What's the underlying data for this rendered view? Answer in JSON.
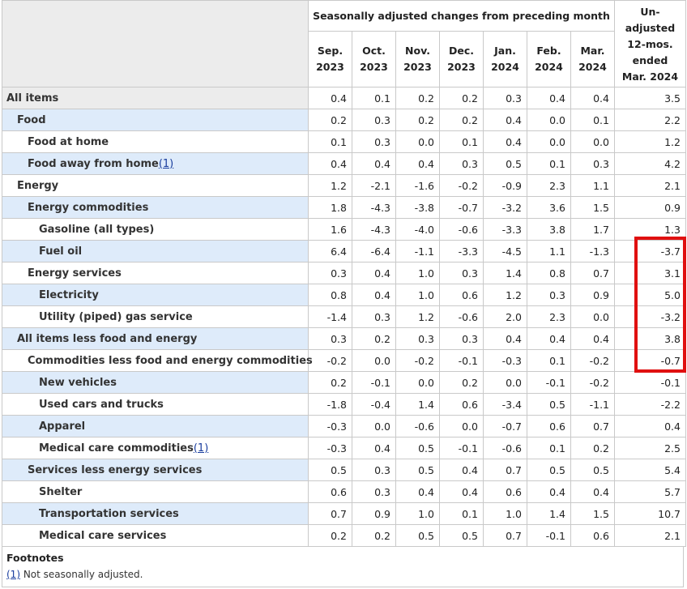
{
  "header": {
    "group_label": "Seasonally adjusted changes from preceding month",
    "unadjusted_label": [
      "Un-",
      "adjusted",
      "12-mos.",
      "ended",
      "Mar. 2024"
    ],
    "months": [
      [
        "Sep.",
        "2023"
      ],
      [
        "Oct.",
        "2023"
      ],
      [
        "Nov.",
        "2023"
      ],
      [
        "Dec.",
        "2023"
      ],
      [
        "Jan.",
        "2024"
      ],
      [
        "Feb.",
        "2024"
      ],
      [
        "Mar.",
        "2024"
      ]
    ]
  },
  "rows": [
    {
      "label": "All items",
      "level": 0,
      "shade": false,
      "values": [
        "0.4",
        "0.1",
        "0.2",
        "0.2",
        "0.3",
        "0.4",
        "0.4",
        "3.5"
      ]
    },
    {
      "label": "Food",
      "level": 1,
      "shade": true,
      "values": [
        "0.2",
        "0.3",
        "0.2",
        "0.2",
        "0.4",
        "0.0",
        "0.1",
        "2.2"
      ]
    },
    {
      "label": "Food at home",
      "level": 2,
      "shade": false,
      "values": [
        "0.1",
        "0.3",
        "0.0",
        "0.1",
        "0.4",
        "0.0",
        "0.0",
        "1.2"
      ]
    },
    {
      "label": "Food away from home",
      "footnote": "(1)",
      "level": 2,
      "shade": true,
      "values": [
        "0.4",
        "0.4",
        "0.4",
        "0.3",
        "0.5",
        "0.1",
        "0.3",
        "4.2"
      ]
    },
    {
      "label": "Energy",
      "level": 1,
      "shade": false,
      "values": [
        "1.2",
        "-2.1",
        "-1.6",
        "-0.2",
        "-0.9",
        "2.3",
        "1.1",
        "2.1"
      ]
    },
    {
      "label": "Energy commodities",
      "level": 2,
      "shade": true,
      "values": [
        "1.8",
        "-4.3",
        "-3.8",
        "-0.7",
        "-3.2",
        "3.6",
        "1.5",
        "0.9"
      ]
    },
    {
      "label": "Gasoline (all types)",
      "level": 3,
      "shade": false,
      "values": [
        "1.6",
        "-4.3",
        "-4.0",
        "-0.6",
        "-3.3",
        "3.8",
        "1.7",
        "1.3"
      ]
    },
    {
      "label": "Fuel oil",
      "level": 3,
      "shade": true,
      "values": [
        "6.4",
        "-6.4",
        "-1.1",
        "-3.3",
        "-4.5",
        "1.1",
        "-1.3",
        "-3.7"
      ]
    },
    {
      "label": "Energy services",
      "level": 2,
      "shade": false,
      "values": [
        "0.3",
        "0.4",
        "1.0",
        "0.3",
        "1.4",
        "0.8",
        "0.7",
        "3.1"
      ]
    },
    {
      "label": "Electricity",
      "level": 3,
      "shade": true,
      "values": [
        "0.8",
        "0.4",
        "1.0",
        "0.6",
        "1.2",
        "0.3",
        "0.9",
        "5.0"
      ]
    },
    {
      "label": "Utility (piped) gas service",
      "level": 3,
      "shade": false,
      "values": [
        "-1.4",
        "0.3",
        "1.2",
        "-0.6",
        "2.0",
        "2.3",
        "0.0",
        "-3.2"
      ]
    },
    {
      "label": "All items less food and energy",
      "level": 1,
      "shade": true,
      "values": [
        "0.3",
        "0.2",
        "0.3",
        "0.3",
        "0.4",
        "0.4",
        "0.4",
        "3.8"
      ]
    },
    {
      "label": "Commodities less food and energy commodities",
      "level": 2,
      "shade": false,
      "values": [
        "-0.2",
        "0.0",
        "-0.2",
        "-0.1",
        "-0.3",
        "0.1",
        "-0.2",
        "-0.7"
      ]
    },
    {
      "label": "New vehicles",
      "level": 3,
      "shade": true,
      "values": [
        "0.2",
        "-0.1",
        "0.0",
        "0.2",
        "0.0",
        "-0.1",
        "-0.2",
        "-0.1"
      ]
    },
    {
      "label": "Used cars and trucks",
      "level": 3,
      "shade": false,
      "values": [
        "-1.8",
        "-0.4",
        "1.4",
        "0.6",
        "-3.4",
        "0.5",
        "-1.1",
        "-2.2"
      ]
    },
    {
      "label": "Apparel",
      "level": 3,
      "shade": true,
      "values": [
        "-0.3",
        "0.0",
        "-0.6",
        "0.0",
        "-0.7",
        "0.6",
        "0.7",
        "0.4"
      ]
    },
    {
      "label": "Medical care commodities",
      "footnote": "(1)",
      "level": 3,
      "shade": false,
      "values": [
        "-0.3",
        "0.4",
        "0.5",
        "-0.1",
        "-0.6",
        "0.1",
        "0.2",
        "2.5"
      ]
    },
    {
      "label": "Services less energy services",
      "level": 2,
      "shade": true,
      "values": [
        "0.5",
        "0.3",
        "0.5",
        "0.4",
        "0.7",
        "0.5",
        "0.5",
        "5.4"
      ]
    },
    {
      "label": "Shelter",
      "level": 3,
      "shade": false,
      "values": [
        "0.6",
        "0.3",
        "0.4",
        "0.4",
        "0.6",
        "0.4",
        "0.4",
        "5.7"
      ]
    },
    {
      "label": "Transportation services",
      "level": 3,
      "shade": true,
      "values": [
        "0.7",
        "0.9",
        "1.0",
        "0.1",
        "1.0",
        "1.4",
        "1.5",
        "10.7"
      ]
    },
    {
      "label": "Medical care services",
      "level": 3,
      "shade": false,
      "values": [
        "0.2",
        "0.2",
        "0.5",
        "0.5",
        "0.7",
        "-0.1",
        "0.6",
        "2.1"
      ]
    }
  ],
  "footnotes": {
    "title": "Footnotes",
    "items": [
      {
        "marker": "(1)",
        "text": " Not seasonally adjusted."
      }
    ]
  },
  "colors": {
    "row_shade": "#deebfa",
    "header_bg": "#ececec",
    "border": "#c9c9c9",
    "link": "#1a3e9e",
    "highlight": "#e01010"
  }
}
